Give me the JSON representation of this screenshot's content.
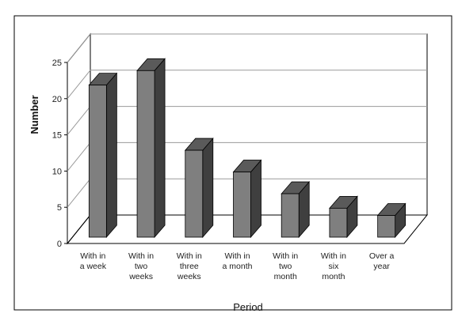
{
  "chart_data": {
    "type": "bar",
    "title": "",
    "xlabel": "Period",
    "ylabel": "Number",
    "ylim": [
      0,
      25
    ],
    "yticks": [
      "0",
      "5",
      "10",
      "15",
      "20",
      "25"
    ],
    "categories": [
      [
        "With in",
        "a week"
      ],
      [
        "With in",
        "two",
        "weeks"
      ],
      [
        "With in",
        "three",
        "weeks"
      ],
      [
        "With in",
        "a month"
      ],
      [
        "With in",
        "two",
        "month"
      ],
      [
        "With in",
        "six",
        "month"
      ],
      [
        "Over a",
        "year"
      ]
    ],
    "values": [
      21,
      23,
      12,
      9,
      6,
      4,
      3
    ],
    "grid": true,
    "style": "3d-column",
    "colors": {
      "bar_front": "#7f7f7f",
      "bar_side": "#3f3f3f",
      "bar_top": "#5a5a5a",
      "grid": "#9a9a9a",
      "frame": "#000000"
    }
  }
}
